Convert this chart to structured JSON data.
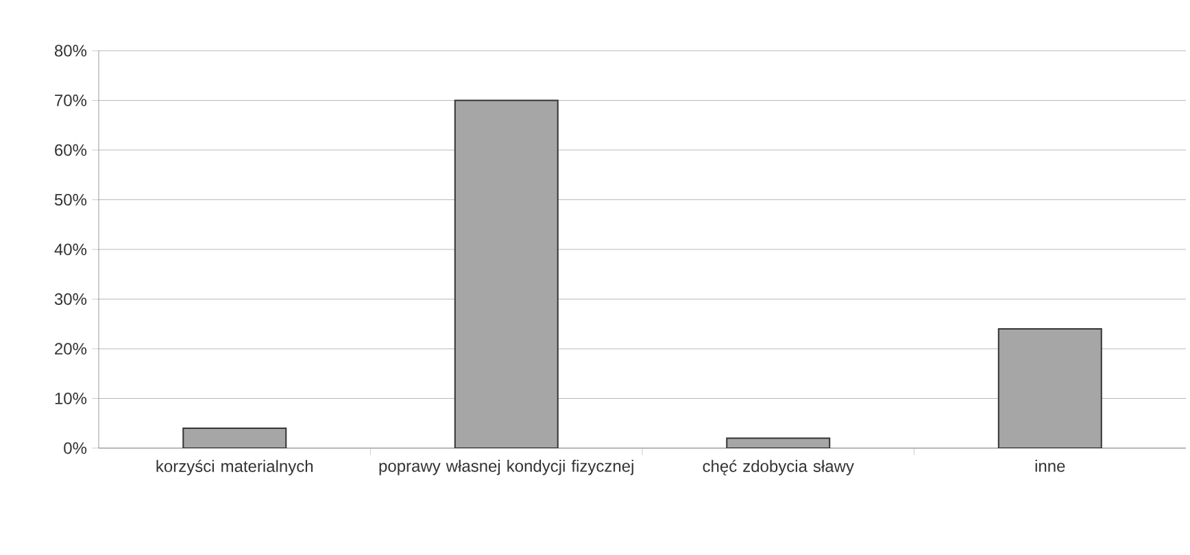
{
  "chart_data": {
    "type": "bar",
    "categories": [
      "korzyści materialnych",
      "poprawy własnej kondycji fizycznej",
      "chęć zdobycia sławy",
      "inne"
    ],
    "values": [
      4,
      70,
      2,
      24
    ],
    "color": "#a6a6a6",
    "ylim": [
      0,
      80
    ],
    "yticks": [
      {
        "value": 0,
        "label": "0%"
      },
      {
        "value": 10,
        "label": "10%"
      },
      {
        "value": 20,
        "label": "20%"
      },
      {
        "value": 30,
        "label": "30%"
      },
      {
        "value": 40,
        "label": "40%"
      },
      {
        "value": 50,
        "label": "50%"
      },
      {
        "value": 60,
        "label": "60%"
      },
      {
        "value": 70,
        "label": "70%"
      },
      {
        "value": 80,
        "label": "80%"
      }
    ],
    "grid": "y"
  }
}
